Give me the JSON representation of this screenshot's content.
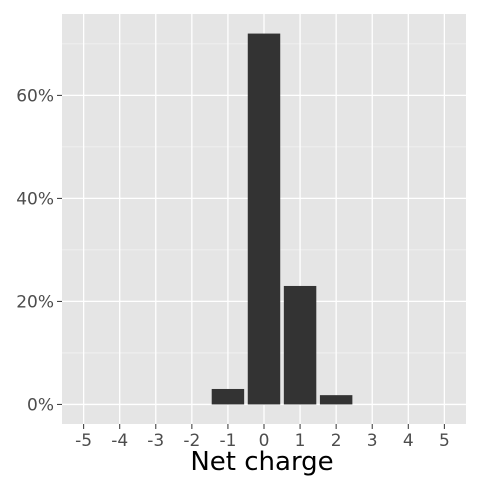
{
  "chart_data": {
    "type": "bar",
    "title": "",
    "xlabel": "Net charge",
    "ylabel": "",
    "x": [
      -5,
      -4,
      -3,
      -2,
      -1,
      0,
      1,
      2,
      3,
      4,
      5
    ],
    "x_tick_labels": [
      "-5",
      "-4",
      "-3",
      "-2",
      "-1",
      "0",
      "1",
      "2",
      "3",
      "4",
      "5"
    ],
    "values": [
      0,
      0,
      0,
      0,
      3.0,
      72.0,
      23.0,
      1.8,
      0,
      0,
      0
    ],
    "value_unit": "%",
    "y_ticks": [
      0,
      20,
      40,
      60
    ],
    "y_tick_labels": [
      "0%",
      "20%",
      "40%",
      "60%"
    ],
    "xlim": [
      -5.6,
      5.6
    ],
    "ylim": [
      -3.8,
      75.8
    ],
    "grid": true,
    "legend": "none",
    "colors": {
      "panel_background": "#e5e5e5",
      "grid_major": "#ffffff",
      "grid_minor": "#f2f2f2",
      "bar_fill": "#333333",
      "tick_text": "#4d4d4d",
      "title_text": "#000000"
    }
  }
}
